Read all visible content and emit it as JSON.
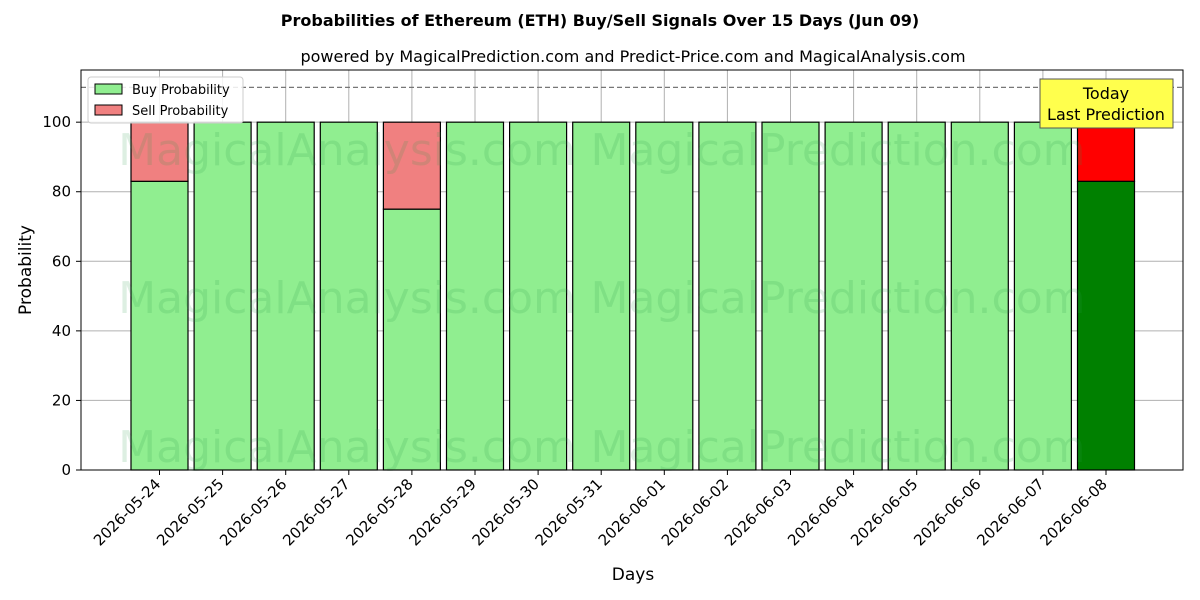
{
  "chart_data": {
    "type": "bar",
    "title": "Probabilities of Ethereum (ETH) Buy/Sell Signals Over 15 Days (Jun 09)",
    "subtitle": "powered by MagicalPrediction.com and Predict-Price.com and MagicalAnalysis.com",
    "xlabel": "Days",
    "ylabel": "Probability",
    "ylim": [
      0,
      115
    ],
    "yticks": [
      0,
      20,
      40,
      60,
      80,
      100
    ],
    "stacked": true,
    "grid": true,
    "legend_position": "top-left",
    "reference_line": 110,
    "categories": [
      "2026-05-24",
      "2026-05-25",
      "2026-05-26",
      "2026-05-27",
      "2026-05-28",
      "2026-05-29",
      "2026-05-30",
      "2026-05-31",
      "2026-06-01",
      "2026-06-02",
      "2026-06-03",
      "2026-06-04",
      "2026-06-05",
      "2026-06-06",
      "2026-06-07",
      "2026-06-08"
    ],
    "series": [
      {
        "name": "Buy Probability",
        "values": [
          83,
          100,
          100,
          100,
          75,
          100,
          100,
          100,
          100,
          100,
          100,
          100,
          100,
          100,
          100,
          83
        ],
        "color": "#90ee90",
        "highlight_color": "#008000"
      },
      {
        "name": "Sell Probability",
        "values": [
          17,
          0,
          0,
          0,
          25,
          0,
          0,
          0,
          0,
          0,
          0,
          0,
          0,
          0,
          0,
          17
        ],
        "color": "#f08080",
        "highlight_color": "#ff0000"
      }
    ],
    "highlight_index": 15,
    "annotation": {
      "line1": "Today",
      "line2": "Last Prediction",
      "color": "#ffff4d"
    },
    "watermarks": [
      "MagicalAnalysis.com",
      "MagicalPrediction.com"
    ]
  }
}
